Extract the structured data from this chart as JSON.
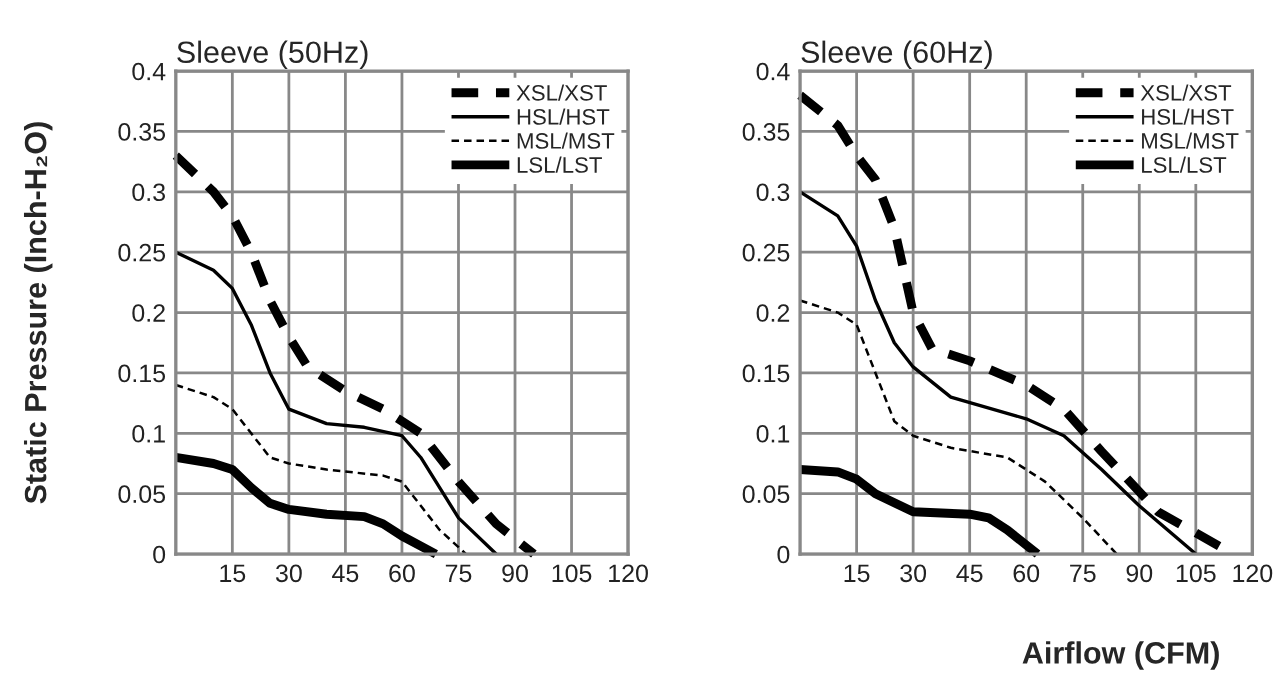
{
  "chart_data": [
    {
      "type": "line",
      "title": "Sleeve (50Hz)",
      "ylabel": "Static Pressure (Inch-H₂O)",
      "xlim": [
        0,
        120
      ],
      "xticks": [
        15,
        30,
        45,
        60,
        75,
        90,
        105,
        120
      ],
      "ylim": [
        0,
        0.4
      ],
      "yticks": [
        0,
        0.05,
        0.1,
        0.15,
        0.2,
        0.25,
        0.3,
        0.35,
        0.4
      ],
      "grid": true,
      "legend": "top right",
      "series": [
        {
          "name": "XSL/XST",
          "color": "#000000",
          "line_style": "dashed",
          "x": [
            0,
            10,
            15,
            20,
            25,
            30,
            35,
            45,
            55,
            65,
            75,
            85,
            95
          ],
          "values": [
            0.33,
            0.3,
            0.28,
            0.25,
            0.21,
            0.18,
            0.155,
            0.135,
            0.12,
            0.1,
            0.06,
            0.025,
            0
          ]
        },
        {
          "name": "HSL/HST",
          "color": "#000000",
          "line_style": "solid",
          "x": [
            0,
            10,
            15,
            20,
            25,
            30,
            40,
            50,
            60,
            65,
            75,
            85
          ],
          "values": [
            0.25,
            0.235,
            0.22,
            0.19,
            0.15,
            0.12,
            0.108,
            0.105,
            0.098,
            0.08,
            0.03,
            0
          ]
        },
        {
          "name": "MSL/MST",
          "color": "#000000",
          "line_style": "dashed",
          "x": [
            0,
            10,
            15,
            20,
            25,
            30,
            40,
            55,
            60,
            65,
            70,
            77
          ],
          "values": [
            0.14,
            0.13,
            0.12,
            0.1,
            0.08,
            0.075,
            0.07,
            0.065,
            0.06,
            0.04,
            0.02,
            0
          ]
        },
        {
          "name": "LSL/LST",
          "color": "#000000",
          "line_style": "solid",
          "x": [
            0,
            10,
            15,
            20,
            25,
            30,
            40,
            50,
            55,
            60,
            69
          ],
          "values": [
            0.08,
            0.075,
            0.07,
            0.055,
            0.042,
            0.037,
            0.033,
            0.031,
            0.025,
            0.015,
            0
          ]
        }
      ]
    },
    {
      "type": "line",
      "title": "Sleeve (60Hz)",
      "xlabel": "Airflow (CFM)",
      "xlim": [
        0,
        120
      ],
      "xticks": [
        15,
        30,
        45,
        60,
        75,
        90,
        105,
        120
      ],
      "ylim": [
        0,
        0.4
      ],
      "yticks": [
        0,
        0.05,
        0.1,
        0.15,
        0.2,
        0.25,
        0.3,
        0.35,
        0.4
      ],
      "grid": true,
      "legend": "top right",
      "series": [
        {
          "name": "XSL/XST",
          "color": "#000000",
          "line_style": "dashed",
          "x": [
            0,
            10,
            15,
            20,
            25,
            30,
            35,
            45,
            60,
            70,
            80,
            95,
            115
          ],
          "values": [
            0.38,
            0.355,
            0.33,
            0.31,
            0.27,
            0.2,
            0.17,
            0.16,
            0.14,
            0.12,
            0.085,
            0.035,
            0
          ]
        },
        {
          "name": "HSL/HST",
          "color": "#000000",
          "line_style": "solid",
          "x": [
            0,
            10,
            15,
            20,
            25,
            30,
            40,
            60,
            70,
            80,
            90,
            105
          ],
          "values": [
            0.3,
            0.28,
            0.255,
            0.21,
            0.175,
            0.155,
            0.13,
            0.112,
            0.098,
            0.07,
            0.04,
            0
          ]
        },
        {
          "name": "MSL/MST",
          "color": "#000000",
          "line_style": "dashed",
          "x": [
            0,
            10,
            15,
            20,
            25,
            30,
            40,
            55,
            65,
            75,
            84
          ],
          "values": [
            0.21,
            0.2,
            0.19,
            0.15,
            0.11,
            0.098,
            0.088,
            0.08,
            0.06,
            0.03,
            0
          ]
        },
        {
          "name": "LSL/LST",
          "color": "#000000",
          "line_style": "solid",
          "x": [
            0,
            10,
            15,
            20,
            30,
            45,
            50,
            55,
            63
          ],
          "values": [
            0.07,
            0.068,
            0.062,
            0.05,
            0.035,
            0.033,
            0.03,
            0.02,
            0
          ]
        }
      ]
    }
  ]
}
